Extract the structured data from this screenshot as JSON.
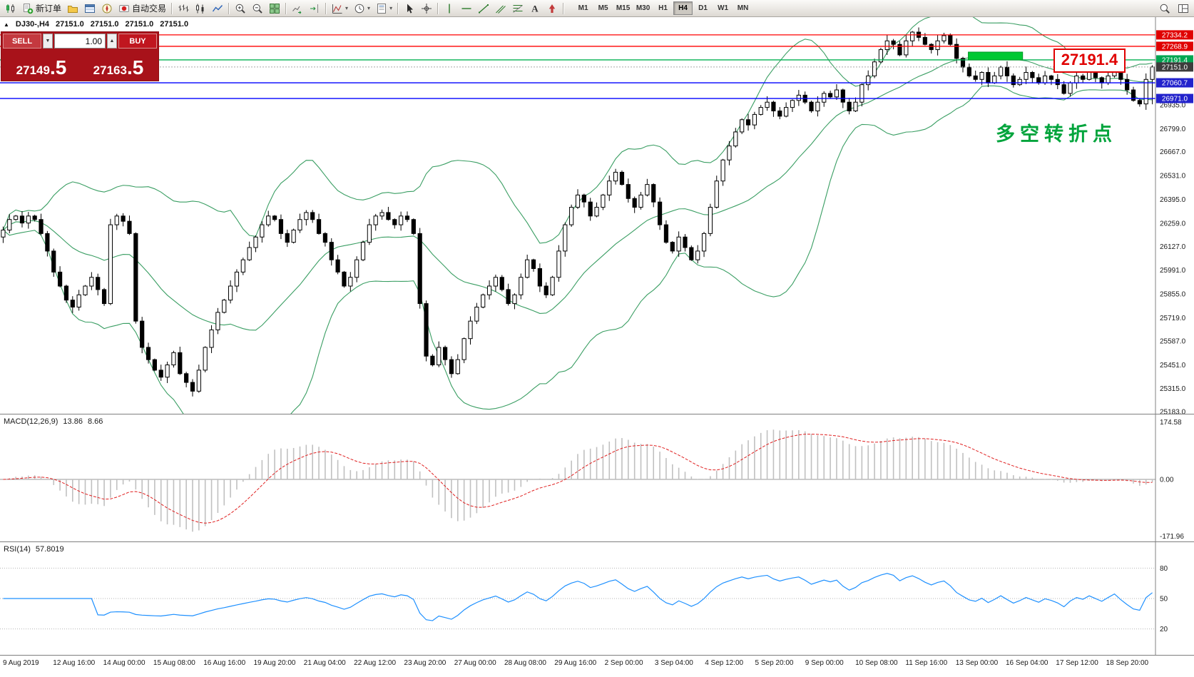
{
  "toolbar": {
    "items": [
      {
        "name": "new-chart-button",
        "icon": "chart-candle"
      },
      {
        "name": "new-order-button",
        "icon": "new-order",
        "label": "新订单"
      },
      {
        "name": "profiles-button",
        "icon": "folder"
      },
      {
        "name": "market-watch-button",
        "icon": "market-watch"
      },
      {
        "name": "navigator-button",
        "icon": "navigator"
      },
      {
        "name": "auto-trading-button",
        "icon": "autotrading",
        "label": "自动交易"
      },
      {
        "sep": true
      },
      {
        "name": "bar-chart-button",
        "icon": "bars"
      },
      {
        "name": "candle-chart-button",
        "icon": "candles"
      },
      {
        "name": "line-chart-button",
        "icon": "line-chart"
      },
      {
        "sep": true
      },
      {
        "name": "zoom-in-button",
        "icon": "zoom-in"
      },
      {
        "name": "zoom-out-button",
        "icon": "zoom-out"
      },
      {
        "name": "tile-windows-button",
        "icon": "tile"
      },
      {
        "sep": true
      },
      {
        "name": "auto-scroll-button",
        "icon": "auto-scroll"
      },
      {
        "name": "chart-shift-button",
        "icon": "chart-shift"
      },
      {
        "sep": true
      },
      {
        "name": "indicators-button",
        "icon": "indicators",
        "caret": true
      },
      {
        "name": "periods-button",
        "icon": "clock",
        "caret": true
      },
      {
        "name": "templates-button",
        "icon": "template",
        "caret": true
      },
      {
        "sep": true
      },
      {
        "name": "cursor-button",
        "icon": "cursor"
      },
      {
        "name": "crosshair-button",
        "icon": "crosshair"
      },
      {
        "sep": true
      },
      {
        "name": "vertical-line-button",
        "icon": "vline"
      },
      {
        "name": "horizontal-line-button",
        "icon": "hline"
      },
      {
        "name": "trendline-button",
        "icon": "trendline"
      },
      {
        "name": "channel-button",
        "icon": "channel"
      },
      {
        "name": "fibonacci-button",
        "icon": "fibo"
      },
      {
        "name": "text-button",
        "icon": "text"
      },
      {
        "name": "arrow-marks-button",
        "icon": "arrow-mark"
      },
      {
        "sep": true
      }
    ],
    "timeframes": [
      "M1",
      "M5",
      "M15",
      "M30",
      "H1",
      "H4",
      "D1",
      "W1",
      "MN"
    ],
    "active_timeframe": "H4",
    "right_items": [
      {
        "name": "search-button",
        "icon": "search"
      },
      {
        "name": "layout-button",
        "icon": "layout"
      }
    ]
  },
  "chart": {
    "header": {
      "symbol_period": "DJ30-,H4",
      "open": "27151.0",
      "high": "27151.0",
      "low": "27151.0",
      "close": "27151.0"
    },
    "trade_panel": {
      "sell_label": "SELL",
      "buy_label": "BUY",
      "volume": "1.00",
      "sell_price_int": "27149",
      "sell_price_dec": ".5",
      "buy_price_int": "27163",
      "buy_price_dec": ".5"
    }
  },
  "chart_data": {
    "type": "candlestick",
    "symbol": "DJ30-",
    "period": "H4",
    "price_axis": {
      "min": 25171,
      "max": 27403,
      "ticks": [
        26935.0,
        26799.0,
        26667.0,
        26531.0,
        26395.0,
        26259.0,
        26127.0,
        25991.0,
        25855.0,
        25719.0,
        25587.0,
        25451.0,
        25315.0,
        25183.0
      ]
    },
    "marked_levels": [
      {
        "price": 27334.2,
        "label": "27334.2",
        "color": "#ff0000",
        "badge": "#e00000"
      },
      {
        "price": 27268.9,
        "label": "27268.9",
        "color": "#ff0000",
        "badge": "#e00000"
      },
      {
        "price": 27191.4,
        "label": "27191.4",
        "color": "#00b050",
        "badge": "#00a651"
      },
      {
        "price": 27151.0,
        "label": "27151.0",
        "color": "#808080",
        "badge": "#3c3c3c",
        "style": "current"
      },
      {
        "price": 27060.7,
        "label": "27060.7",
        "color": "#0000ff",
        "badge": "#2222cc"
      },
      {
        "price": 26971.0,
        "label": "26971.0",
        "color": "#0000ff",
        "badge": "#2222cc"
      }
    ],
    "closes": [
      26220,
      26280,
      26300,
      26260,
      26300,
      26280,
      26200,
      26100,
      25980,
      25900,
      25820,
      25780,
      25850,
      25900,
      25950,
      25880,
      25800,
      26250,
      26300,
      26270,
      26200,
      25700,
      25550,
      25480,
      25420,
      25380,
      25450,
      25520,
      25400,
      25350,
      25300,
      25420,
      25550,
      25650,
      25750,
      25820,
      25900,
      25980,
      26050,
      26120,
      26180,
      26250,
      26300,
      26280,
      26200,
      26150,
      26220,
      26280,
      26320,
      26280,
      26200,
      26150,
      26050,
      25980,
      25900,
      25950,
      26050,
      26150,
      26250,
      26300,
      26320,
      26280,
      26250,
      26300,
      26280,
      26200,
      25800,
      25500,
      25450,
      25550,
      25480,
      25400,
      25480,
      25600,
      25700,
      25780,
      25850,
      25900,
      25950,
      25880,
      25800,
      25850,
      25950,
      26050,
      26000,
      25900,
      25850,
      25950,
      26100,
      26250,
      26350,
      26420,
      26380,
      26300,
      26350,
      26420,
      26500,
      26550,
      26480,
      26400,
      26350,
      26420,
      26480,
      26380,
      26250,
      26150,
      26100,
      26180,
      26120,
      26050,
      26100,
      26200,
      26350,
      26500,
      26620,
      26700,
      26780,
      26850,
      26820,
      26880,
      26920,
      26950,
      26900,
      26870,
      26920,
      26960,
      26990,
      26950,
      26900,
      26950,
      27000,
      26980,
      27020,
      26950,
      26900,
      26950,
      27050,
      27100,
      27180,
      27250,
      27300,
      27280,
      27220,
      27300,
      27350,
      27320,
      27280,
      27250,
      27300,
      27330,
      27280,
      27200,
      27150,
      27100,
      27080,
      27120,
      27060,
      27100,
      27150,
      27100,
      27050,
      27080,
      27120,
      27090,
      27060,
      27100,
      27080,
      27050,
      27000,
      27060,
      27100,
      27080,
      27120,
      27090,
      27060,
      27100,
      27140,
      27080,
      27020,
      26960,
      26940,
      27080,
      27151
    ],
    "last_candle_low": 26938,
    "bollinger": {
      "period": 20,
      "deviation": 2,
      "color": "#3a9e63"
    },
    "candle_colors": {
      "up_fill": "#ffffff",
      "down_fill": "#000000",
      "border": "#000000",
      "wick": "#000000"
    },
    "annotations": {
      "rect": {
        "x0_frac": 0.838,
        "x1_frac": 0.885,
        "price_top": 27236,
        "price_bottom": 27191,
        "fill": "#00c832",
        "stroke": "#009926"
      },
      "price_callout": {
        "text": "27191.4",
        "color": "#e00000"
      },
      "cn_note": {
        "text": "多空转折点",
        "color": "#00a43c"
      }
    },
    "macd": {
      "label": "MACD(12,26,9)",
      "main_value": "13.86",
      "signal_value": "8.66",
      "fast": 12,
      "slow": 26,
      "signal": 9,
      "axis_labels": [
        "174.58",
        "0.00",
        "-171.96"
      ],
      "hist_color": "#c0c0c0",
      "signal_color": "#e02020"
    },
    "rsi": {
      "label": "RSI(14)",
      "value": "57.8019",
      "period": 14,
      "levels": [
        80,
        50,
        20
      ],
      "color": "#1e90ff"
    },
    "time_axis": [
      "9 Aug 2019",
      "12 Aug 16:00",
      "14 Aug 00:00",
      "15 Aug 08:00",
      "16 Aug 16:00",
      "19 Aug 20:00",
      "21 Aug 04:00",
      "22 Aug 12:00",
      "23 Aug 20:00",
      "27 Aug 00:00",
      "28 Aug 08:00",
      "29 Aug 16:00",
      "2 Sep 00:00",
      "3 Sep 04:00",
      "4 Sep 12:00",
      "5 Sep 20:00",
      "9 Sep 00:00",
      "10 Sep 08:00",
      "11 Sep 16:00",
      "13 Sep 00:00",
      "16 Sep 04:00",
      "17 Sep 12:00",
      "18 Sep 20:00"
    ]
  }
}
